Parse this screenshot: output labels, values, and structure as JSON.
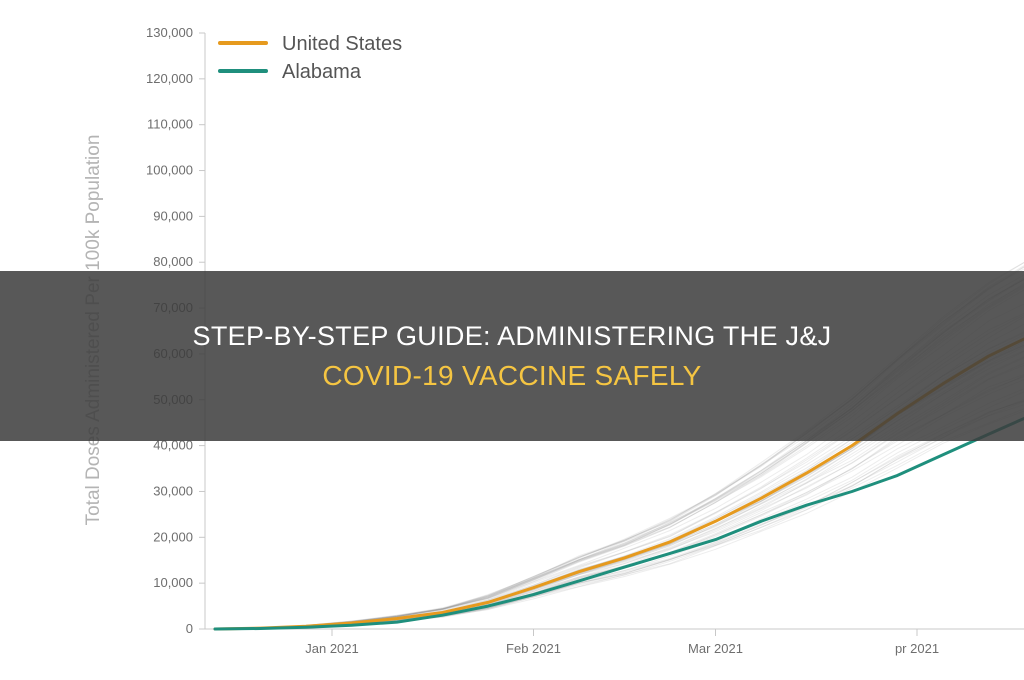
{
  "banner": {
    "line1": "STEP-BY-STEP GUIDE: ADMINISTERING THE J&J",
    "line2": "COVID-19 VACCINE SAFELY",
    "line1_color": "#ffffff",
    "line2_color": "#f5c542",
    "background": "#3c3c3c"
  },
  "chart_data": {
    "type": "line",
    "title": "",
    "xlabel": "",
    "ylabel": "Total Doses Administered Per 100k Population",
    "ylim": [
      0,
      130000
    ],
    "xlim": [
      "2020-12-14",
      "2021-04-20"
    ],
    "y_ticks": [
      {
        "value": 0,
        "label": "0"
      },
      {
        "value": 10000,
        "label": "10,000"
      },
      {
        "value": 20000,
        "label": "20,000"
      },
      {
        "value": 30000,
        "label": "30,000"
      },
      {
        "value": 40000,
        "label": "40,000"
      },
      {
        "value": 50000,
        "label": "50,000"
      },
      {
        "value": 60000,
        "label": "60,000"
      },
      {
        "value": 70000,
        "label": "70,000"
      },
      {
        "value": 80000,
        "label": "80,000"
      },
      {
        "value": 90000,
        "label": "90,000"
      },
      {
        "value": 100000,
        "label": "100,000"
      },
      {
        "value": 110000,
        "label": "110,000"
      },
      {
        "value": 120000,
        "label": "120,000"
      },
      {
        "value": 130000,
        "label": "130,000"
      }
    ],
    "x_ticks": [
      {
        "date": "2021-01-01",
        "label": "Jan 2021"
      },
      {
        "date": "2021-02-01",
        "label": "Feb 2021"
      },
      {
        "date": "2021-03-01",
        "label": "Mar 2021"
      },
      {
        "date": "2021-04-01",
        "label": "pr 2021"
      }
    ],
    "grid": false,
    "legend": "top-left",
    "series": [
      {
        "name": "United States",
        "color": "#e69a1e",
        "points": [
          [
            "2020-12-14",
            0
          ],
          [
            "2020-12-21",
            200
          ],
          [
            "2020-12-28",
            600
          ],
          [
            "2021-01-04",
            1300
          ],
          [
            "2021-01-11",
            2300
          ],
          [
            "2021-01-18",
            3600
          ],
          [
            "2021-01-25",
            5800
          ],
          [
            "2021-02-01",
            9000
          ],
          [
            "2021-02-08",
            12500
          ],
          [
            "2021-02-15",
            15500
          ],
          [
            "2021-02-22",
            19000
          ],
          [
            "2021-03-01",
            23500
          ],
          [
            "2021-03-08",
            28500
          ],
          [
            "2021-03-15",
            34000
          ],
          [
            "2021-03-22",
            40000
          ],
          [
            "2021-03-29",
            47000
          ],
          [
            "2021-04-05",
            53500
          ],
          [
            "2021-04-12",
            59500
          ],
          [
            "2021-04-20",
            65000
          ]
        ]
      },
      {
        "name": "Alabama",
        "color": "#1f8f7d",
        "points": [
          [
            "2020-12-14",
            0
          ],
          [
            "2020-12-21",
            100
          ],
          [
            "2020-12-28",
            400
          ],
          [
            "2021-01-04",
            800
          ],
          [
            "2021-01-11",
            1500
          ],
          [
            "2021-01-18",
            3000
          ],
          [
            "2021-01-25",
            5000
          ],
          [
            "2021-02-01",
            7500
          ],
          [
            "2021-02-08",
            10500
          ],
          [
            "2021-02-15",
            13500
          ],
          [
            "2021-02-22",
            16500
          ],
          [
            "2021-03-01",
            19500
          ],
          [
            "2021-03-08",
            23500
          ],
          [
            "2021-03-15",
            27000
          ],
          [
            "2021-03-22",
            30000
          ],
          [
            "2021-03-29",
            33500
          ],
          [
            "2021-04-05",
            38000
          ],
          [
            "2021-04-12",
            42500
          ],
          [
            "2021-04-20",
            47500
          ]
        ]
      }
    ],
    "background_series": {
      "color": "#9a9a9a",
      "count": 50
    }
  }
}
